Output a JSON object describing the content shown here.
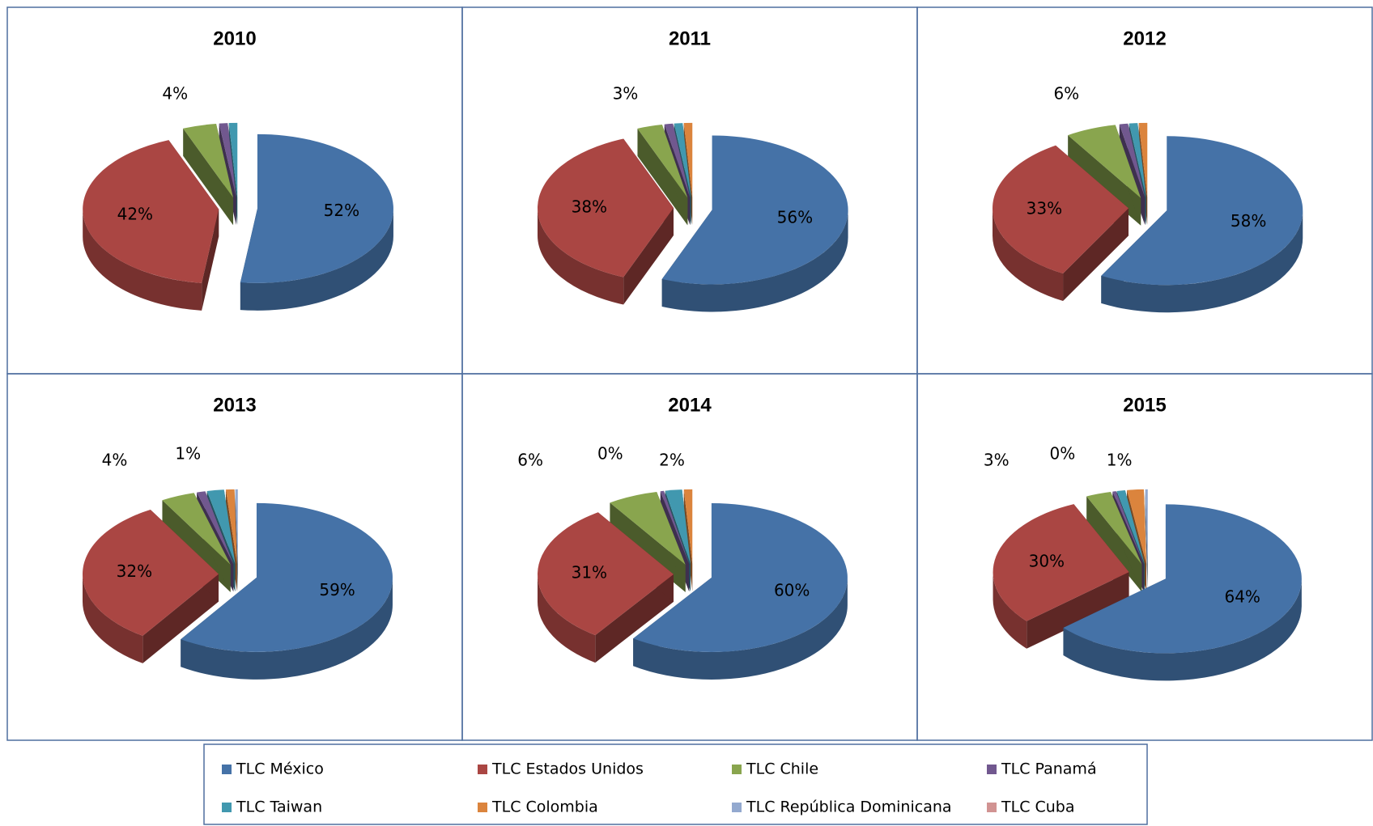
{
  "chart_data": [
    {
      "type": "pie",
      "title": "2010",
      "categories": [
        "TLC México",
        "TLC Estados  Unidos",
        "TLC Chile",
        "TLC Panamá",
        "TLC Taiwan",
        "TLC Colombia",
        "TLC República Dominicana",
        "TLC Cuba"
      ],
      "values": [
        52,
        42,
        4,
        1,
        1,
        0,
        0,
        0
      ],
      "value_labels": [
        "52%",
        "42%",
        "4%",
        null,
        null,
        null,
        null,
        null
      ],
      "colors": [
        "#4572a7",
        "#aa4643",
        "#89a54e",
        "#71588f",
        "#4198af",
        "#db843d",
        "#93a9cf",
        "#d19392"
      ]
    },
    {
      "type": "pie",
      "title": "2011",
      "categories": [
        "TLC México",
        "TLC Estados  Unidos",
        "TLC Chile",
        "TLC Panamá",
        "TLC Taiwan",
        "TLC Colombia",
        "TLC República Dominicana",
        "TLC Cuba"
      ],
      "values": [
        56,
        38,
        3,
        1,
        1,
        1,
        0,
        0
      ],
      "value_labels": [
        "56%",
        "38%",
        "3%",
        null,
        null,
        null,
        null,
        null
      ],
      "colors": [
        "#4572a7",
        "#aa4643",
        "#89a54e",
        "#71588f",
        "#4198af",
        "#db843d",
        "#93a9cf",
        "#d19392"
      ]
    },
    {
      "type": "pie",
      "title": "2012",
      "categories": [
        "TLC México",
        "TLC Estados  Unidos",
        "TLC Chile",
        "TLC Panamá",
        "TLC Taiwan",
        "TLC Colombia",
        "TLC República Dominicana",
        "TLC Cuba"
      ],
      "values": [
        58,
        33,
        6,
        1,
        1,
        1,
        0,
        0
      ],
      "value_labels": [
        "58%",
        "33%",
        "6%",
        null,
        null,
        null,
        null,
        null
      ],
      "colors": [
        "#4572a7",
        "#aa4643",
        "#89a54e",
        "#71588f",
        "#4198af",
        "#db843d",
        "#93a9cf",
        "#d19392"
      ]
    },
    {
      "type": "pie",
      "title": "2013",
      "categories": [
        "TLC México",
        "TLC Estados  Unidos",
        "TLC Chile",
        "TLC Panamá",
        "TLC Taiwan",
        "TLC Colombia",
        "TLC República Dominicana",
        "TLC Cuba"
      ],
      "values": [
        59,
        32,
        4,
        1,
        2,
        1,
        0.3,
        0
      ],
      "value_labels": [
        "59%",
        "32%",
        "4%",
        "1%",
        null,
        null,
        null,
        null
      ],
      "colors": [
        "#4572a7",
        "#aa4643",
        "#89a54e",
        "#71588f",
        "#4198af",
        "#db843d",
        "#93a9cf",
        "#d19392"
      ]
    },
    {
      "type": "pie",
      "title": "2014",
      "categories": [
        "TLC México",
        "TLC Estados  Unidos",
        "TLC Chile",
        "TLC Panamá",
        "TLC Taiwan",
        "TLC Colombia",
        "TLC República Dominicana",
        "TLC Cuba"
      ],
      "values": [
        60,
        31,
        6,
        0.4,
        2,
        1,
        0,
        0
      ],
      "value_labels": [
        "60%",
        "31%",
        "6%",
        "0%",
        "2%",
        null,
        null,
        null
      ],
      "colors": [
        "#4572a7",
        "#aa4643",
        "#89a54e",
        "#71588f",
        "#4198af",
        "#db843d",
        "#93a9cf",
        "#d19392"
      ]
    },
    {
      "type": "pie",
      "title": "2015",
      "categories": [
        "TLC México",
        "TLC Estados  Unidos",
        "TLC Chile",
        "TLC Panamá",
        "TLC Taiwan",
        "TLC Colombia",
        "TLC República Dominicana",
        "TLC Cuba"
      ],
      "values": [
        64,
        30,
        3,
        0.4,
        1,
        2,
        0.3,
        0
      ],
      "value_labels": [
        "64%",
        "30%",
        "3%",
        "0%",
        "1%",
        null,
        null,
        null
      ],
      "colors": [
        "#4572a7",
        "#aa4643",
        "#89a54e",
        "#71588f",
        "#4198af",
        "#db843d",
        "#93a9cf",
        "#d19392"
      ]
    }
  ]
}
